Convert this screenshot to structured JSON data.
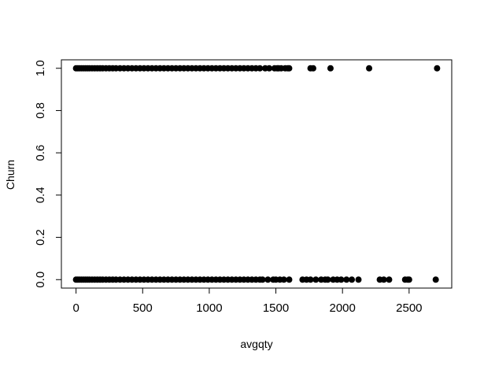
{
  "chart_data": {
    "type": "scatter",
    "title": "",
    "xlabel": "avgqty",
    "ylabel": "Churn",
    "xlim": [
      -110,
      2820
    ],
    "ylim": [
      -0.04,
      1.04
    ],
    "x_ticks": [
      0,
      500,
      1000,
      1500,
      2000,
      2500
    ],
    "y_ticks": [
      0.0,
      0.2,
      0.4,
      0.6,
      0.8,
      1.0
    ],
    "x_tick_labels": [
      "0",
      "500",
      "1000",
      "1500",
      "2000",
      "2500"
    ],
    "y_tick_labels": [
      "0.0",
      "0.2",
      "0.4",
      "0.6",
      "0.8",
      "1.0"
    ],
    "grid": false,
    "point_color": "#000000",
    "series": [
      {
        "values_y": 1,
        "x": [
          0,
          12,
          25,
          40,
          55,
          70,
          85,
          100,
          120,
          140,
          160,
          180,
          200,
          225,
          250,
          275,
          300,
          330,
          360,
          390,
          420,
          450,
          480,
          510,
          540,
          570,
          600,
          630,
          660,
          690,
          720,
          750,
          780,
          810,
          840,
          870,
          900,
          930,
          960,
          990,
          1020,
          1050,
          1080,
          1110,
          1140,
          1170,
          1200,
          1230,
          1260,
          1290,
          1320,
          1350,
          1380,
          1420,
          1450,
          1490,
          1510,
          1520,
          1540,
          1570,
          1590,
          1600,
          1760,
          1780,
          1910,
          2200,
          2710
        ]
      },
      {
        "values_y": 0,
        "x": [
          0,
          12,
          25,
          40,
          55,
          70,
          85,
          100,
          120,
          140,
          160,
          180,
          200,
          225,
          250,
          275,
          300,
          330,
          360,
          390,
          420,
          450,
          480,
          510,
          540,
          570,
          600,
          630,
          660,
          690,
          720,
          750,
          780,
          810,
          840,
          870,
          900,
          930,
          960,
          990,
          1020,
          1050,
          1080,
          1110,
          1140,
          1170,
          1200,
          1230,
          1260,
          1290,
          1320,
          1350,
          1380,
          1400,
          1440,
          1480,
          1500,
          1530,
          1560,
          1600,
          1700,
          1730,
          1760,
          1800,
          1840,
          1870,
          1890,
          1930,
          1960,
          1990,
          2030,
          2070,
          2120,
          2280,
          2310,
          2350,
          2470,
          2490,
          2500,
          2700
        ]
      }
    ]
  }
}
